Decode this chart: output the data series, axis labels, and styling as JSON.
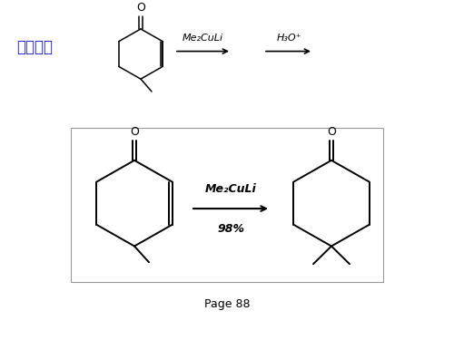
{
  "bg_color": "#ffffff",
  "top_label": "完成反应",
  "top_label_color": "#2222cc",
  "reagent1_top": "Me₂CuLi",
  "reagent2_top": "H₃O⁺",
  "reagent_middle": "Me₂CuLi",
  "yield_text": "98%",
  "page_text": "Page 88"
}
